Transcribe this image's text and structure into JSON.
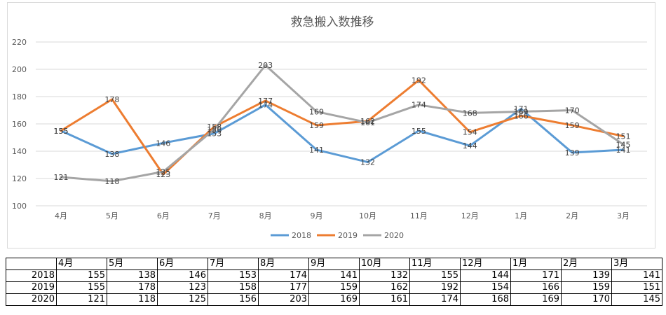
{
  "chart_data": {
    "type": "line",
    "title": "救急搬入数推移",
    "categories": [
      "4月",
      "5月",
      "6月",
      "7月",
      "8月",
      "9月",
      "10月",
      "11月",
      "12月",
      "1月",
      "2月",
      "3月"
    ],
    "ylim": [
      100,
      220
    ],
    "yticks": [
      100,
      120,
      140,
      160,
      180,
      200,
      220
    ],
    "grid": true,
    "legend_position": "bottom",
    "series": [
      {
        "name": "2018",
        "color": "#5b9bd5",
        "values": [
          155,
          138,
          146,
          153,
          174,
          141,
          132,
          155,
          144,
          171,
          139,
          141
        ]
      },
      {
        "name": "2019",
        "color": "#ed7d31",
        "values": [
          155,
          178,
          123,
          158,
          177,
          159,
          162,
          192,
          154,
          166,
          159,
          151
        ]
      },
      {
        "name": "2020",
        "color": "#a5a5a5",
        "values": [
          121,
          118,
          125,
          156,
          203,
          169,
          161,
          174,
          168,
          169,
          170,
          145
        ]
      }
    ]
  },
  "table": {
    "header": [
      "",
      "4月",
      "5月",
      "6月",
      "7月",
      "8月",
      "9月",
      "10月",
      "11月",
      "12月",
      "1月",
      "2月",
      "3月"
    ],
    "rows": [
      [
        "2018",
        "155",
        "138",
        "146",
        "153",
        "174",
        "141",
        "132",
        "155",
        "144",
        "171",
        "139",
        "141"
      ],
      [
        "2019",
        "155",
        "178",
        "123",
        "158",
        "177",
        "159",
        "162",
        "192",
        "154",
        "166",
        "159",
        "151"
      ],
      [
        "2020",
        "121",
        "118",
        "125",
        "156",
        "203",
        "169",
        "161",
        "174",
        "168",
        "169",
        "170",
        "145"
      ]
    ]
  }
}
